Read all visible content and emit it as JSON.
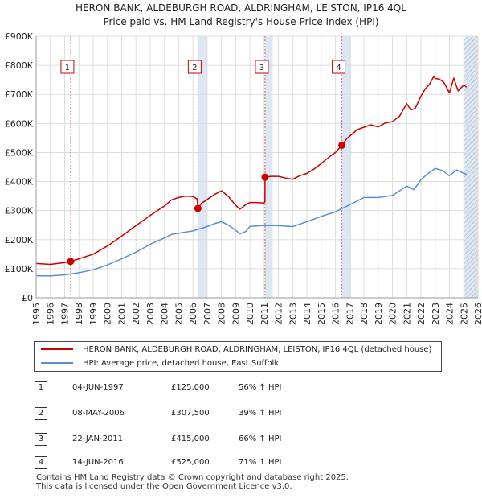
{
  "title_line1": "HERON BANK, ALDEBURGH ROAD, ALDRINGHAM, LEISTON, IP16 4QL",
  "title_line2": "Price paid vs. HM Land Registry's House Price Index (HPI)",
  "colors": {
    "property": "#cc0000",
    "hpi": "#5b8ed0",
    "vline": "#e06666",
    "shade": "#dde6f3",
    "grid": "#dddddd"
  },
  "chart_data": {
    "type": "line",
    "xlim": [
      1995,
      2026
    ],
    "ylim": [
      0,
      900000
    ],
    "xticks": [
      1995,
      1996,
      1997,
      1998,
      1999,
      2000,
      2001,
      2002,
      2003,
      2004,
      2005,
      2006,
      2007,
      2008,
      2009,
      2010,
      2011,
      2012,
      2013,
      2014,
      2015,
      2016,
      2017,
      2018,
      2019,
      2020,
      2021,
      2022,
      2023,
      2024,
      2025,
      2026
    ],
    "yticks": [
      {
        "value": 0,
        "label": "£0"
      },
      {
        "value": 100000,
        "label": "£100K"
      },
      {
        "value": 200000,
        "label": "£200K"
      },
      {
        "value": 300000,
        "label": "£300K"
      },
      {
        "value": 400000,
        "label": "£400K"
      },
      {
        "value": 500000,
        "label": "£500K"
      },
      {
        "value": 600000,
        "label": "£600K"
      },
      {
        "value": 700000,
        "label": "£700K"
      },
      {
        "value": 800000,
        "label": "£800K"
      },
      {
        "value": 900000,
        "label": "£900K"
      }
    ],
    "shaded_ranges": [
      [
        2006.35,
        2007.0
      ],
      [
        2011.06,
        2011.6
      ],
      [
        2016.45,
        2017.1
      ],
      [
        2025.05,
        2026
      ]
    ],
    "hatch_start": 2025.05,
    "series": [
      {
        "name": "HERON BANK, ALDEBURGH ROAD, ALDRINGHAM, LEISTON, IP16 4QL (detached house)",
        "key": "property",
        "x": [
          1995,
          1996,
          1997,
          1997.42,
          1998,
          1999,
          2000,
          2001,
          2002,
          2003,
          2004,
          2004.5,
          2005,
          2005.5,
          2006,
          2006.3,
          2006.35,
          2006.6,
          2007,
          2007.5,
          2008,
          2008.5,
          2009,
          2009.3,
          2009.7,
          2010,
          2010.5,
          2011,
          2011.05,
          2011.06,
          2011.5,
          2012,
          2012.5,
          2013,
          2013.5,
          2014,
          2014.5,
          2015,
          2015.5,
          2016,
          2016.45,
          2016.8,
          2017.2,
          2017.5,
          2018,
          2018.5,
          2019,
          2019.5,
          2020,
          2020.5,
          2021,
          2021.3,
          2021.6,
          2022,
          2022.3,
          2022.6,
          2022.9,
          2023,
          2023.3,
          2023.6,
          2024,
          2024.3,
          2024.6,
          2025,
          2025.2
        ],
        "values": [
          118000,
          115000,
          121000,
          125000,
          134000,
          150000,
          178000,
          212000,
          248000,
          283000,
          316000,
          337000,
          345000,
          350000,
          348000,
          340000,
          307500,
          325000,
          338000,
          355000,
          368000,
          348000,
          318000,
          305000,
          320000,
          328000,
          328000,
          326000,
          330000,
          415000,
          418000,
          418000,
          412000,
          408000,
          420000,
          428000,
          443000,
          462000,
          482000,
          500000,
          525000,
          548000,
          565000,
          578000,
          587000,
          595000,
          588000,
          602000,
          606000,
          625000,
          668000,
          646000,
          652000,
          694000,
          719000,
          735000,
          762000,
          755000,
          752000,
          742000,
          705000,
          756000,
          712000,
          732000,
          725000
        ]
      },
      {
        "name": "HPI: Average price, detached house, East Suffolk",
        "key": "hpi",
        "x": [
          1995,
          1996,
          1997,
          1998,
          1999,
          2000,
          2001,
          2002,
          2003,
          2004,
          2004.5,
          2005,
          2006,
          2007,
          2007.5,
          2008,
          2008.5,
          2009,
          2009.3,
          2009.7,
          2010,
          2011,
          2012,
          2013,
          2014,
          2015,
          2016,
          2017,
          2018,
          2019,
          2020,
          2021,
          2021.5,
          2022,
          2022.5,
          2023,
          2023.5,
          2024,
          2024.5,
          2025,
          2025.2
        ],
        "values": [
          76000,
          75000,
          79000,
          86000,
          96000,
          113000,
          134000,
          157000,
          184000,
          206000,
          218000,
          222000,
          230000,
          245000,
          255000,
          262000,
          250000,
          232000,
          220000,
          228000,
          246000,
          249000,
          248000,
          245000,
          262000,
          280000,
          296000,
          320000,
          345000,
          345000,
          352000,
          384000,
          372000,
          406000,
          428000,
          445000,
          438000,
          420000,
          440000,
          428000,
          425000
        ]
      }
    ],
    "sales": [
      {
        "num": "1",
        "x": 1997.42,
        "price": 125000,
        "date": "04-JUN-1997",
        "price_label": "£125,000",
        "hpi_label": "56% ↑ HPI"
      },
      {
        "num": "2",
        "x": 2006.35,
        "price": 307500,
        "date": "08-MAY-2006",
        "price_label": "£307,500",
        "hpi_label": "39% ↑ HPI"
      },
      {
        "num": "3",
        "x": 2011.06,
        "price": 415000,
        "date": "22-JAN-2011",
        "price_label": "£415,000",
        "hpi_label": "66% ↑ HPI"
      },
      {
        "num": "4",
        "x": 2016.45,
        "price": 525000,
        "date": "14-JUN-2016",
        "price_label": "£525,000",
        "hpi_label": "71% ↑ HPI"
      }
    ]
  },
  "legend": {
    "property_label": "HERON BANK, ALDEBURGH ROAD, ALDRINGHAM, LEISTON, IP16 4QL (detached house)",
    "hpi_label": "HPI: Average price, detached house, East Suffolk"
  },
  "footer": {
    "line1": "Contains HM Land Registry data © Crown copyright and database right 2025.",
    "line2": "This data is licensed under the Open Government Licence v3.0."
  }
}
